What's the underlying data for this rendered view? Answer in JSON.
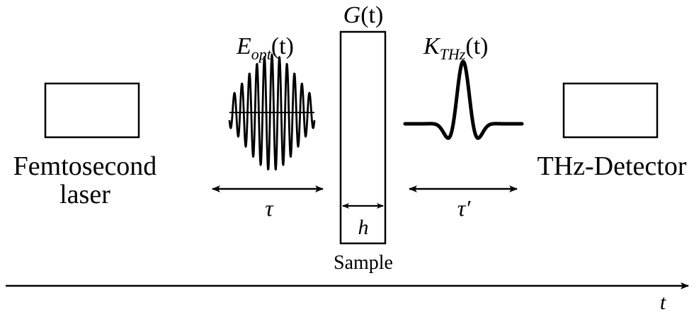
{
  "labels": {
    "laser_line1": "Femtosecond",
    "laser_line2": "laser",
    "detector": "THz-Detector",
    "sample": "Sample",
    "G_main": "G",
    "G_arg": "(t)",
    "E_main": "E",
    "E_sub": "opt",
    "E_arg": "(t)",
    "K_main": "K",
    "K_sub": "THz",
    "K_arg": "(t)",
    "tau": "τ",
    "tau_prime": "τ′",
    "h": "h",
    "t": "t"
  },
  "colors": {
    "stroke": "#000000",
    "background": "#ffffff"
  }
}
